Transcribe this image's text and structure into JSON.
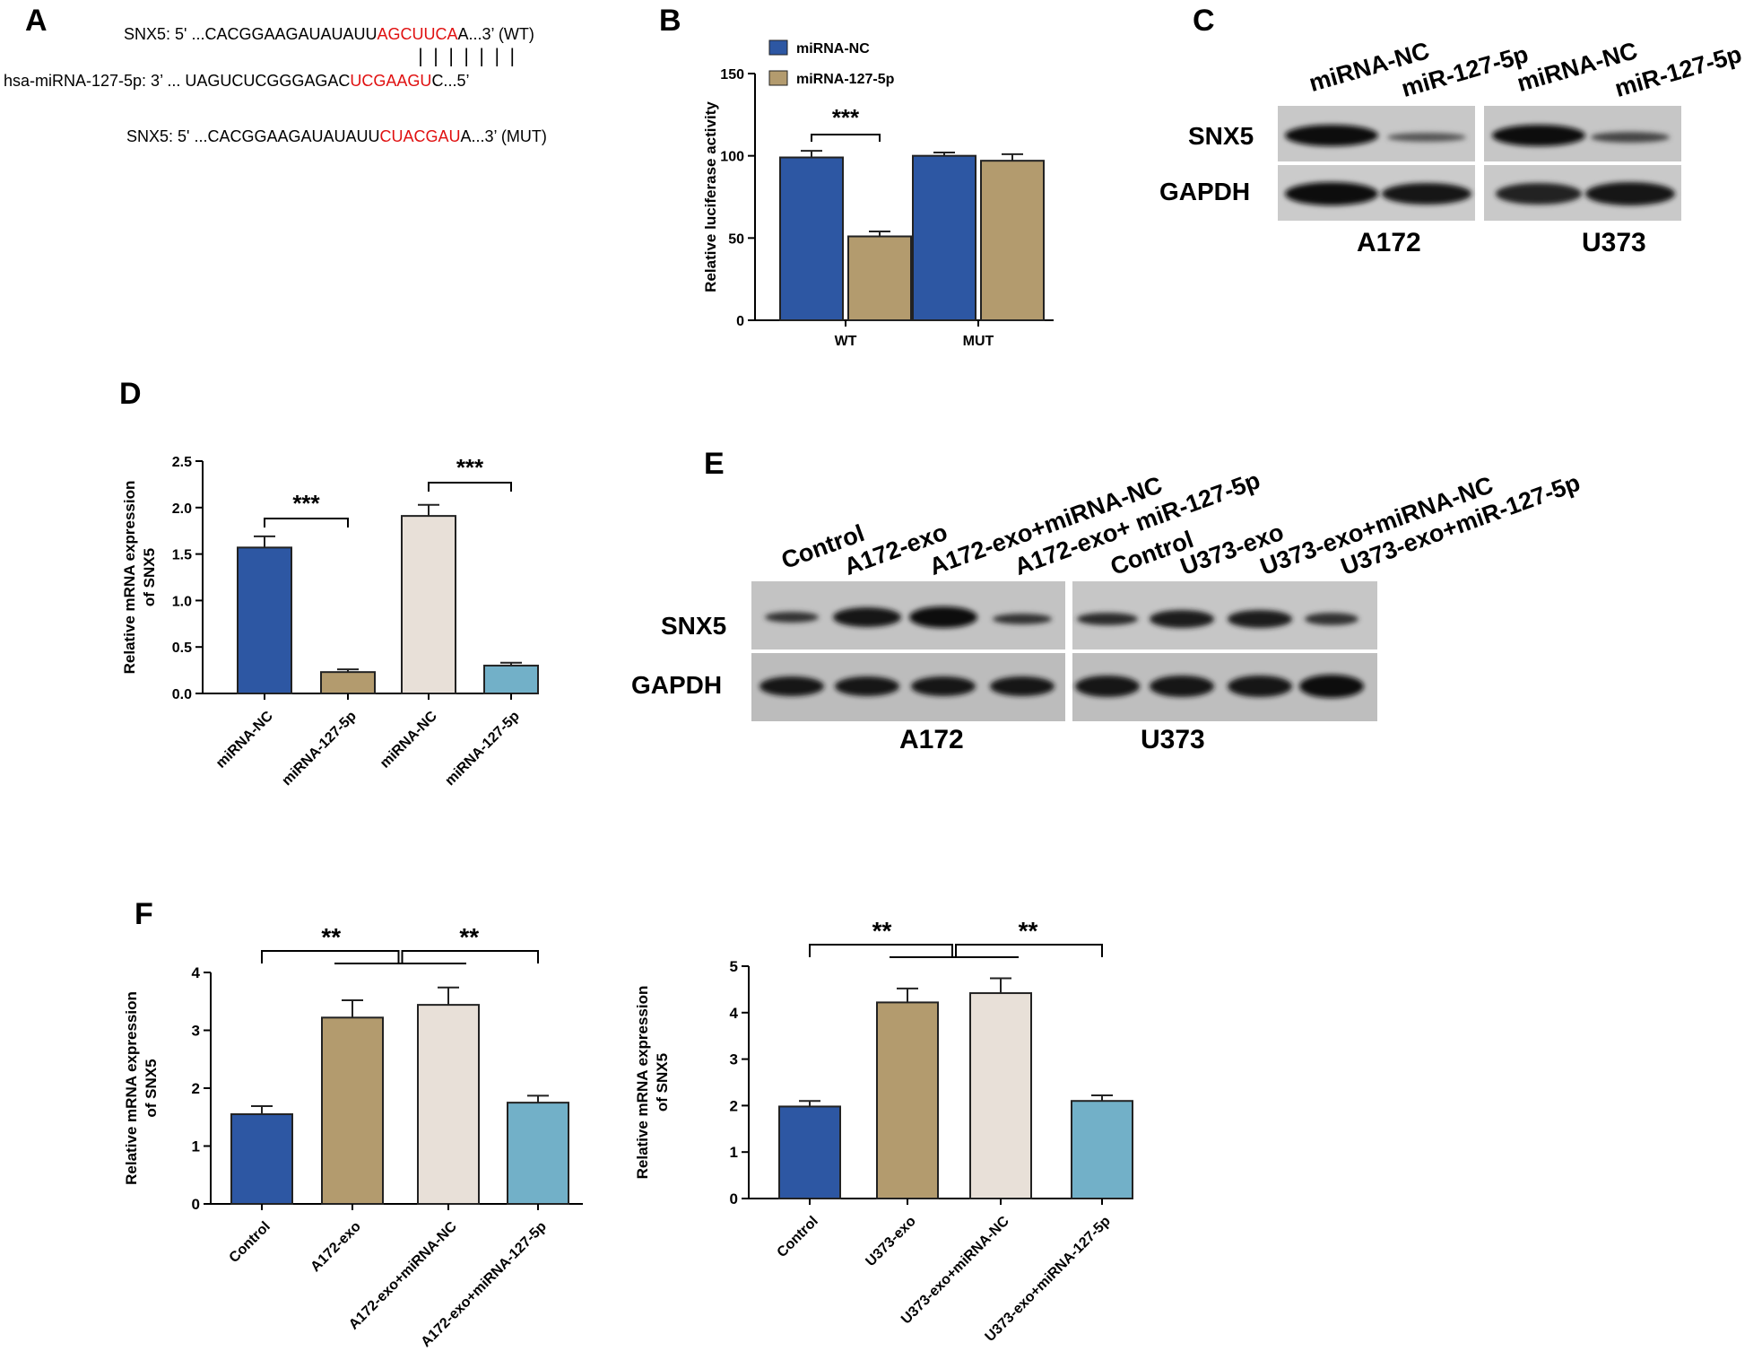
{
  "panels": [
    "A",
    "B",
    "C",
    "D",
    "E",
    "F"
  ],
  "panel_a": {
    "wt": {
      "prefix": "SNX5: 5' ...CACGGAAGAUAUAUU",
      "site": "AGCUUCA",
      "suffix": "A...3’ (WT)"
    },
    "pairing": "|||||||",
    "mirna": {
      "prefix": "hsa-miRNA-127-5p:  3’ ... UAGUCUCGGGAGAC",
      "site": "UCGAAGU",
      "suffix": "C...5’"
    },
    "mut": {
      "prefix": "SNX5: 5' ...CACGGAAGAUAUAUU",
      "site": "CUACGAU",
      "suffix": "A...3’ (MUT)"
    }
  },
  "panel_c": {
    "lanes": [
      "miRNA-NC",
      "miR-127-5p",
      "miRNA-NC",
      "miR-127-5p"
    ],
    "rows": [
      "SNX5",
      "GAPDH"
    ],
    "cells": [
      "A172",
      "U373"
    ]
  },
  "panel_e": {
    "lanes": [
      "Control",
      "A172-exo",
      "A172-exo+miRNA-NC",
      "A172-exo+ miR-127-5p",
      "Control",
      "U373-exo",
      "U373-exo+miRNA-NC",
      "U373-exo+miR-127-5p"
    ],
    "rows": [
      "SNX5",
      "GAPDH"
    ],
    "cells": [
      "A172",
      "U373"
    ]
  },
  "colors": {
    "blue": "#2d57a3",
    "tan": "#b39b6e",
    "cream": "#e8e0d8",
    "lightblue": "#72b0c8",
    "sig": "#000000",
    "red": "#e01010"
  },
  "chart_data": [
    {
      "id": "B",
      "type": "bar",
      "categories": [
        "WT",
        "MUT"
      ],
      "series": [
        {
          "name": "miRNA-NC",
          "values": [
            99,
            100
          ],
          "errors": [
            4,
            2
          ],
          "color": "#2d57a3"
        },
        {
          "name": "miRNA-127-5p",
          "values": [
            51,
            97
          ],
          "errors": [
            3,
            4
          ],
          "color": "#b39b6e"
        }
      ],
      "ylabel": "Relative luciferase activity",
      "ylim": [
        0,
        150
      ],
      "yticks": [
        0,
        50,
        100,
        150
      ],
      "legend": "top-left",
      "annotations": [
        "***"
      ]
    },
    {
      "id": "D",
      "type": "bar",
      "categories": [
        "miRNA-NC",
        "miRNA-127-5p",
        "miRNA-NC",
        "miRNA-127-5p"
      ],
      "values": [
        1.57,
        0.23,
        1.91,
        0.3
      ],
      "errors": [
        0.12,
        0.03,
        0.12,
        0.03
      ],
      "colors": [
        "#2d57a3",
        "#b39b6e",
        "#e8e0d8",
        "#72b0c8"
      ],
      "ylabel_lines": [
        "Relative mRNA expression",
        "of SNX5"
      ],
      "ylim": [
        0,
        2.5
      ],
      "yticks": [
        "0.0",
        "0.5",
        "1.0",
        "1.5",
        "2.0",
        "2.5"
      ],
      "annotations": [
        "***",
        "***"
      ]
    },
    {
      "id": "F1",
      "type": "bar",
      "categories": [
        "Control",
        "A172-exo",
        "A172-exo+miRNA-NC",
        "A172-exo+miRNA-127-5p"
      ],
      "values": [
        1.55,
        3.22,
        3.44,
        1.75
      ],
      "errors": [
        0.14,
        0.3,
        0.3,
        0.12
      ],
      "colors": [
        "#2d57a3",
        "#b39b6e",
        "#e8e0d8",
        "#72b0c8"
      ],
      "ylabel_lines": [
        "Relative mRNA expression",
        "of SNX5"
      ],
      "ylim": [
        0,
        4
      ],
      "yticks": [
        "0",
        "1",
        "2",
        "3",
        "4"
      ],
      "annotations": [
        "**",
        "**"
      ]
    },
    {
      "id": "F2",
      "type": "bar",
      "categories": [
        "Control",
        "U373-exo",
        "U373-exo+miRNA-NC",
        "U373-exo+miRNA-127-5p"
      ],
      "values": [
        1.98,
        4.22,
        4.42,
        2.1
      ],
      "errors": [
        0.12,
        0.3,
        0.32,
        0.12
      ],
      "colors": [
        "#2d57a3",
        "#b39b6e",
        "#e8e0d8",
        "#72b0c8"
      ],
      "ylabel_lines": [
        "Relative mRNA expression",
        "of SNX5"
      ],
      "ylim": [
        0,
        5
      ],
      "yticks": [
        "0",
        "1",
        "2",
        "3",
        "4",
        "5"
      ],
      "annotations": [
        "**",
        "**"
      ]
    }
  ]
}
